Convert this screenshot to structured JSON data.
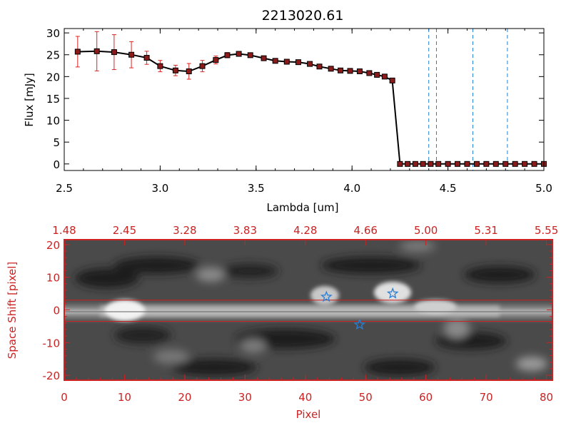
{
  "chart_data": [
    {
      "type": "line",
      "title": "2213020.61",
      "xlabel": "Lambda [um]",
      "ylabel": "Flux [mJy]",
      "xlim": [
        2.5,
        5.0
      ],
      "ylim": [
        -1.5,
        31
      ],
      "x_ticks": [
        "2.5",
        "3.0",
        "3.5",
        "4.0",
        "4.5",
        "5.0"
      ],
      "y_ticks": [
        "0",
        "5",
        "10",
        "15",
        "20",
        "25",
        "30"
      ],
      "series": [
        {
          "color": "#000000",
          "marker_color": "#8b1a1a",
          "errorbar_color": "#dd2222",
          "x": [
            2.57,
            2.67,
            2.76,
            2.85,
            2.93,
            3.0,
            3.08,
            3.15,
            3.22,
            3.29,
            3.35,
            3.41,
            3.47,
            3.54,
            3.6,
            3.66,
            3.72,
            3.78,
            3.83,
            3.89,
            3.94,
            3.99,
            4.04,
            4.09,
            4.13,
            4.17,
            4.21,
            4.25,
            4.29,
            4.33,
            4.37,
            4.41,
            4.45,
            4.5,
            4.55,
            4.6,
            4.65,
            4.7,
            4.75,
            4.8,
            4.85,
            4.9,
            4.95,
            5.0
          ],
          "y": [
            25.7,
            25.8,
            25.6,
            25.0,
            24.3,
            22.4,
            21.4,
            21.2,
            22.4,
            23.8,
            24.9,
            25.2,
            24.9,
            24.2,
            23.6,
            23.4,
            23.3,
            22.9,
            22.3,
            21.8,
            21.4,
            21.3,
            21.2,
            20.8,
            20.4,
            20.0,
            19.1,
            0.0,
            0.0,
            0.0,
            0.0,
            0.0,
            0.0,
            0.0,
            0.0,
            0.0,
            0.0,
            0.0,
            0.0,
            0.0,
            0.0,
            0.0,
            0.0,
            0.0
          ],
          "yerr": [
            3.5,
            4.5,
            4.0,
            3.0,
            1.5,
            1.3,
            1.2,
            1.8,
            1.3,
            0.9,
            0.6,
            0.5,
            0.4,
            0.3,
            0.3,
            0.3,
            0.3,
            0.3,
            0.3,
            0.3,
            0.3,
            0.3,
            0.3,
            0.3,
            0.3,
            0.3,
            0.3,
            0,
            0,
            0,
            0,
            0,
            0,
            0,
            0,
            0,
            0,
            0,
            0,
            0,
            0,
            0,
            0,
            0
          ]
        }
      ],
      "vlines": [
        4.4,
        4.44,
        4.63,
        4.81
      ],
      "vline_color": "#1e7fd6"
    },
    {
      "type": "heatmap",
      "xlabel": "Pixel",
      "ylabel": "Space Shift [pixel]",
      "xlim": [
        0,
        81
      ],
      "ylim": [
        -21.5,
        21.5
      ],
      "x_ticks": [
        "0",
        "10",
        "20",
        "30",
        "40",
        "50",
        "60",
        "70",
        "80"
      ],
      "y_ticks": [
        "-20",
        "-10",
        "0",
        "10",
        "20"
      ],
      "top_axis_labels": [
        "1.48",
        "2.45",
        "3.28",
        "3.83",
        "4.28",
        "4.66",
        "5.00",
        "5.31",
        "5.55"
      ],
      "top_axis_positions": [
        0,
        10,
        20,
        30,
        40,
        50,
        60,
        70,
        80
      ],
      "axis_color": "#cc2222",
      "hlines": [
        3,
        -3.5
      ],
      "star_markers": [
        {
          "x": 43.5,
          "y": 4
        },
        {
          "x": 49,
          "y": -4.5
        },
        {
          "x": 54.5,
          "y": 5
        }
      ],
      "star_color": "#2a7fd6"
    }
  ]
}
